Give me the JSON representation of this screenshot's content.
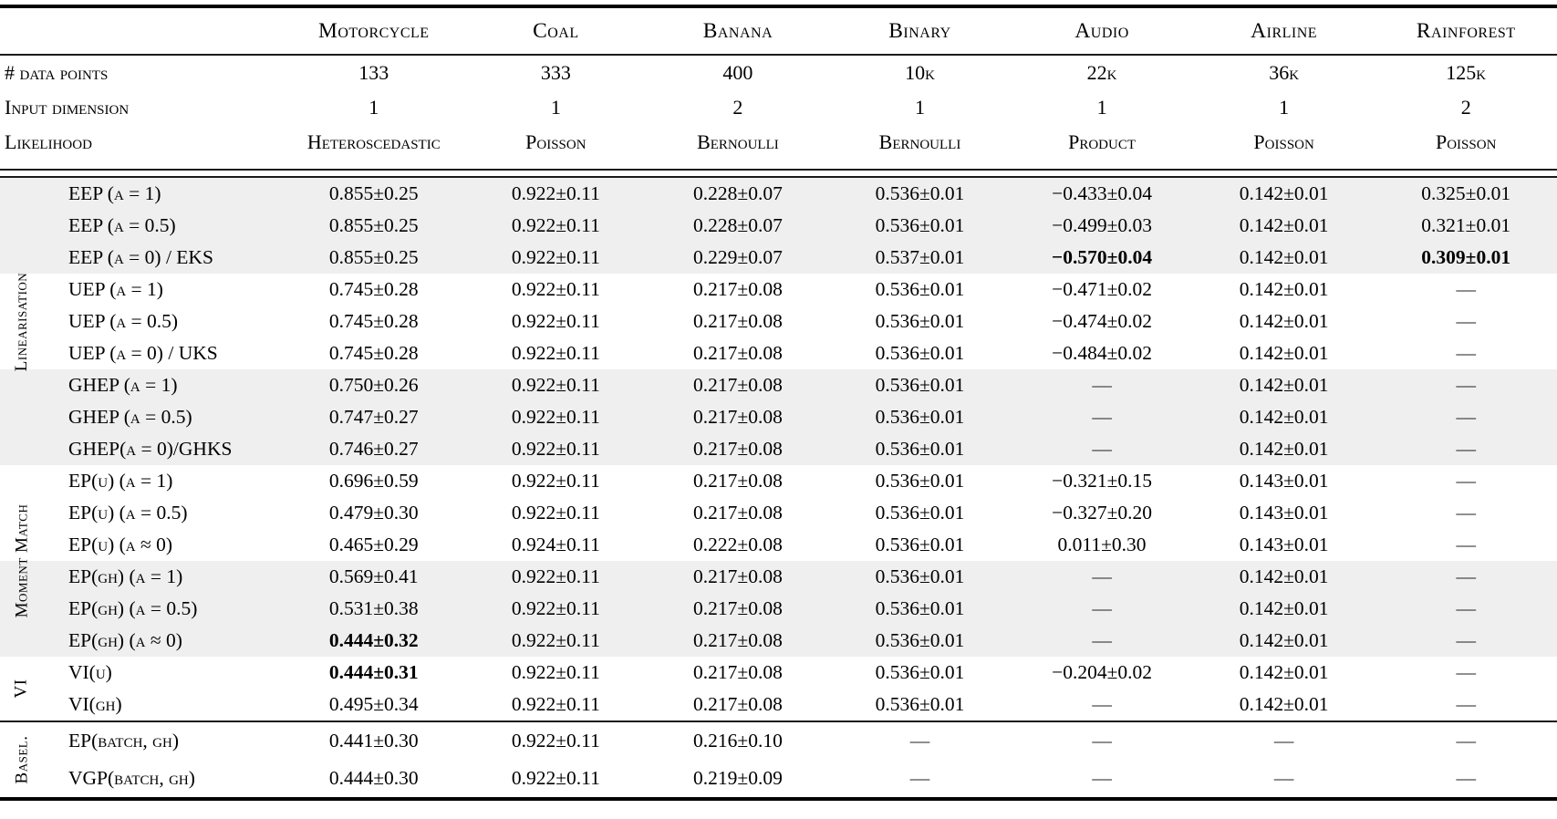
{
  "page": {
    "shade_color": "#efefef",
    "rule_color": "#1a1a1a"
  },
  "table": {
    "column_headers": [
      "Motorcycle",
      "Coal",
      "Banana",
      "Binary",
      "Audio",
      "Airline",
      "Rainforest"
    ],
    "info_rows": [
      {
        "label": "# data points",
        "values": [
          "133",
          "333",
          "400",
          "10k",
          "22k",
          "36k",
          "125k"
        ]
      },
      {
        "label": "Input dimension",
        "values": [
          "1",
          "1",
          "2",
          "1",
          "1",
          "1",
          "2"
        ]
      },
      {
        "label": "Likelihood",
        "values": [
          "Heteroscedastic",
          "Poisson",
          "Bernoulli",
          "Bernoulli",
          "Product",
          "Poisson",
          "Poisson"
        ]
      }
    ],
    "groups": [
      {
        "name": "Linearisation",
        "rows": [
          {
            "label": "EEP (α = 1)",
            "shaded": true,
            "cells": [
              "0.855±0.25",
              "0.922±0.11",
              "0.228±0.07",
              "0.536±0.01",
              "−0.433±0.04",
              "0.142±0.01",
              "0.325±0.01"
            ]
          },
          {
            "label": "EEP (α = 0.5)",
            "shaded": true,
            "cells": [
              "0.855±0.25",
              "0.922±0.11",
              "0.228±0.07",
              "0.536±0.01",
              "−0.499±0.03",
              "0.142±0.01",
              "0.321±0.01"
            ]
          },
          {
            "label": "EEP (α = 0) / EKS",
            "shaded": true,
            "cells": [
              "0.855±0.25",
              "0.922±0.11",
              "0.229±0.07",
              "0.537±0.01",
              {
                "v": "−0.570±0.04",
                "bold": true
              },
              "0.142±0.01",
              {
                "v": "0.309±0.01",
                "bold": true
              }
            ]
          },
          {
            "label": "UEP (α = 1)",
            "shaded": false,
            "cells": [
              "0.745±0.28",
              "0.922±0.11",
              "0.217±0.08",
              "0.536±0.01",
              "−0.471±0.02",
              "0.142±0.01",
              "—"
            ]
          },
          {
            "label": "UEP (α = 0.5)",
            "shaded": false,
            "cells": [
              "0.745±0.28",
              "0.922±0.11",
              "0.217±0.08",
              "0.536±0.01",
              "−0.474±0.02",
              "0.142±0.01",
              "—"
            ]
          },
          {
            "label": "UEP (α = 0) / UKS",
            "shaded": false,
            "cells": [
              "0.745±0.28",
              "0.922±0.11",
              "0.217±0.08",
              "0.536±0.01",
              "−0.484±0.02",
              "0.142±0.01",
              "—"
            ]
          },
          {
            "label": "GHEP (α = 1)",
            "shaded": true,
            "cells": [
              "0.750±0.26",
              "0.922±0.11",
              "0.217±0.08",
              "0.536±0.01",
              "—",
              "0.142±0.01",
              "—"
            ]
          },
          {
            "label": "GHEP (α = 0.5)",
            "shaded": true,
            "cells": [
              "0.747±0.27",
              "0.922±0.11",
              "0.217±0.08",
              "0.536±0.01",
              "—",
              "0.142±0.01",
              "—"
            ]
          },
          {
            "label": "GHEP(α = 0)/GHKS",
            "shaded": true,
            "cells": [
              "0.746±0.27",
              "0.922±0.11",
              "0.217±0.08",
              "0.536±0.01",
              "—",
              "0.142±0.01",
              "—"
            ]
          }
        ]
      },
      {
        "name": "Moment Match",
        "rows": [
          {
            "label": "EP(u) (α = 1)",
            "shaded": false,
            "cells": [
              "0.696±0.59",
              "0.922±0.11",
              "0.217±0.08",
              "0.536±0.01",
              "−0.321±0.15",
              "0.143±0.01",
              "—"
            ]
          },
          {
            "label": "EP(u) (α = 0.5)",
            "shaded": false,
            "cells": [
              "0.479±0.30",
              "0.922±0.11",
              "0.217±0.08",
              "0.536±0.01",
              "−0.327±0.20",
              "0.143±0.01",
              "—"
            ]
          },
          {
            "label": "EP(u) (α ≈ 0)",
            "shaded": false,
            "cells": [
              "0.465±0.29",
              "0.924±0.11",
              "0.222±0.08",
              "0.536±0.01",
              "0.011±0.30",
              "0.143±0.01",
              "—"
            ]
          },
          {
            "label": "EP(gh) (α = 1)",
            "shaded": true,
            "cells": [
              "0.569±0.41",
              "0.922±0.11",
              "0.217±0.08",
              "0.536±0.01",
              "—",
              "0.142±0.01",
              "—"
            ]
          },
          {
            "label": "EP(gh) (α = 0.5)",
            "shaded": true,
            "cells": [
              "0.531±0.38",
              "0.922±0.11",
              "0.217±0.08",
              "0.536±0.01",
              "—",
              "0.142±0.01",
              "—"
            ]
          },
          {
            "label": "EP(gh) (α ≈ 0)",
            "shaded": true,
            "cells": [
              {
                "v": "0.444±0.32",
                "bold": true
              },
              "0.922±0.11",
              "0.217±0.08",
              "0.536±0.01",
              "—",
              "0.142±0.01",
              "—"
            ]
          }
        ]
      },
      {
        "name": "VI",
        "rows": [
          {
            "label": "VI(u)",
            "shaded": false,
            "cells": [
              {
                "v": "0.444±0.31",
                "bold": true
              },
              "0.922±0.11",
              "0.217±0.08",
              "0.536±0.01",
              "−0.204±0.02",
              "0.142±0.01",
              "—"
            ]
          },
          {
            "label": "VI(gh)",
            "shaded": false,
            "cells": [
              "0.495±0.34",
              "0.922±0.11",
              "0.217±0.08",
              "0.536±0.01",
              "—",
              "0.142±0.01",
              "—"
            ]
          }
        ]
      }
    ],
    "baseline_group": {
      "name": "Basel.",
      "rows": [
        {
          "label": "EP(batch, gh)",
          "shaded": false,
          "cells": [
            "0.441±0.30",
            "0.922±0.11",
            "0.216±0.10",
            "—",
            "—",
            "—",
            "—"
          ]
        },
        {
          "label": "VGP(batch, gh)",
          "shaded": false,
          "cells": [
            "0.444±0.30",
            "0.922±0.11",
            "0.219±0.09",
            "—",
            "—",
            "—",
            "—"
          ]
        }
      ]
    }
  }
}
